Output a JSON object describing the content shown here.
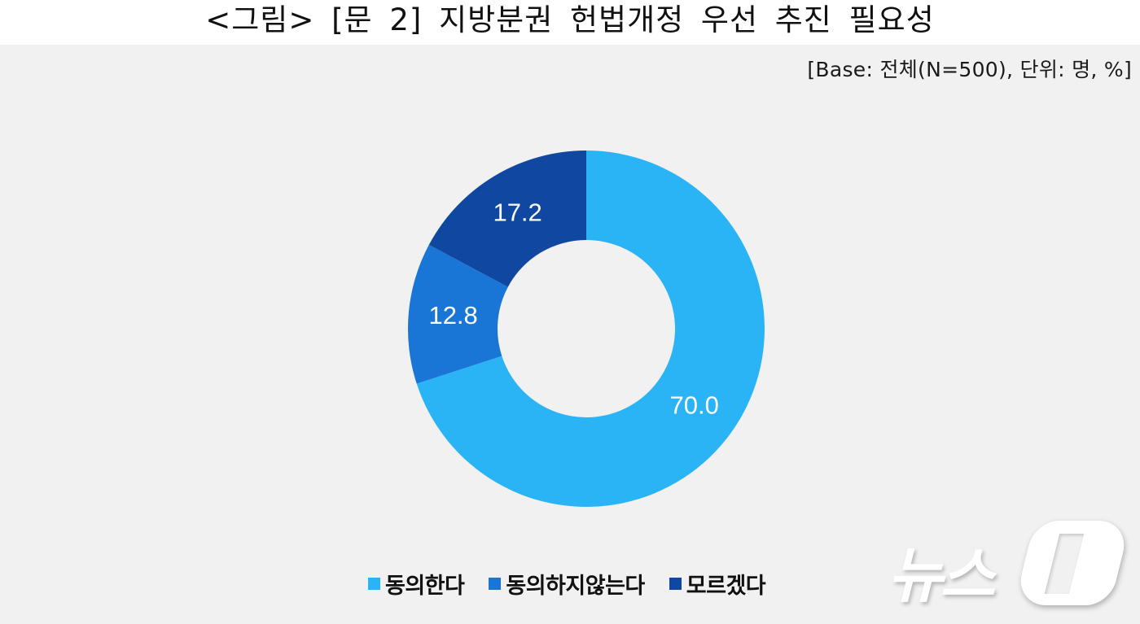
{
  "header": {
    "title": "<그림> [문 2] 지방분권 헌법개정 우선 추진 필요성",
    "base_note": "[Base: 전체(N=500), 단위: 명, %]"
  },
  "legend": {
    "items": [
      {
        "label": "동의한다",
        "color": "#2bb4f5"
      },
      {
        "label": "동의하지않는다",
        "color": "#1976d6"
      },
      {
        "label": "모르겠다",
        "color": "#0f47a1"
      }
    ]
  },
  "watermark": {
    "text": "뉴스1"
  },
  "chart_data": {
    "type": "pie",
    "variant": "donut",
    "title": "<그림> [문 2] 지방분권 헌법개정 우선 추진 필요성",
    "subtitle": "[Base: 전체(N=500), 단위: 명, %]",
    "categories": [
      "동의한다",
      "동의하지않는다",
      "모르겠다"
    ],
    "values": [
      70.0,
      12.8,
      17.2
    ],
    "value_labels": [
      "70.0",
      "12.8",
      "17.2"
    ],
    "colors": [
      "#2bb4f5",
      "#1976d6",
      "#0f47a1"
    ],
    "start_angle_deg": 0,
    "direction": "clockwise",
    "legend_position": "bottom",
    "unit": "%"
  }
}
